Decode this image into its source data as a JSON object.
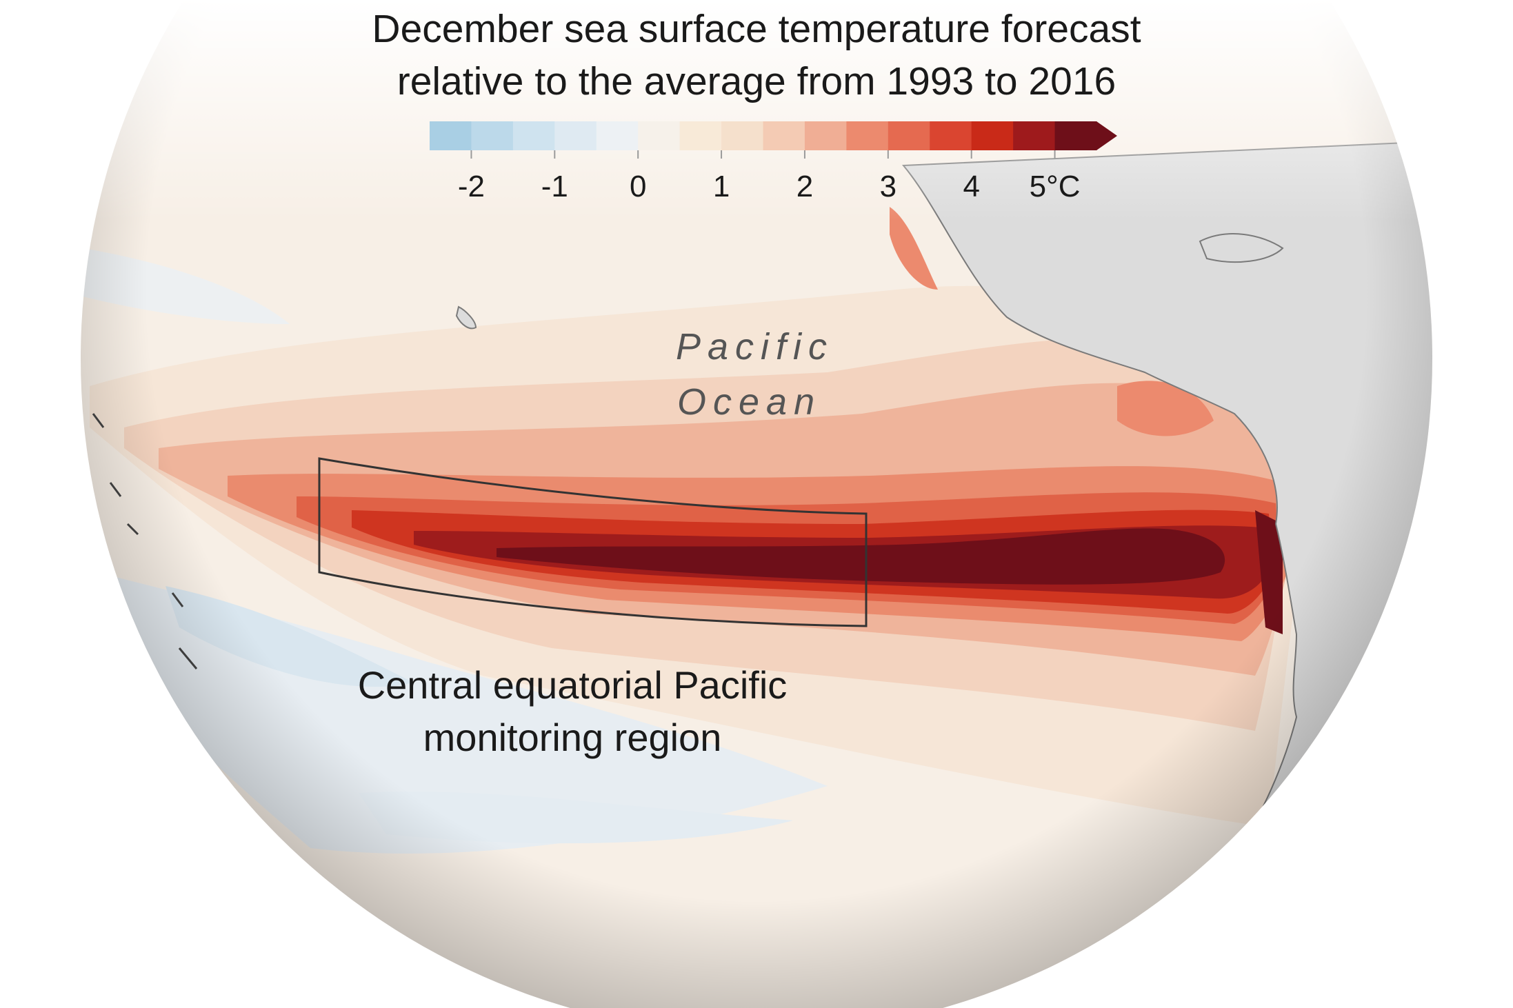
{
  "title": {
    "line1": "December sea surface temperature forecast",
    "line2": "relative to the average from 1993 to 2016"
  },
  "legend": {
    "unit": "°C",
    "ticks": [
      "-2",
      "-1",
      "0",
      "1",
      "2",
      "3",
      "4",
      "5°C"
    ],
    "tick_values": [
      -2,
      -1,
      0,
      1,
      2,
      3,
      4,
      5
    ],
    "bins": [
      {
        "from": -2.5,
        "to": -2.0,
        "color": "#a9cfe4"
      },
      {
        "from": -2.0,
        "to": -1.5,
        "color": "#bcd9ea"
      },
      {
        "from": -1.5,
        "to": -1.0,
        "color": "#cfe3ef"
      },
      {
        "from": -1.0,
        "to": -0.5,
        "color": "#dfeaf2"
      },
      {
        "from": -0.5,
        "to": 0.0,
        "color": "#edf1f4"
      },
      {
        "from": 0.0,
        "to": 0.5,
        "color": "#f6f1ea"
      },
      {
        "from": 0.5,
        "to": 1.0,
        "color": "#f8ead8"
      },
      {
        "from": 1.0,
        "to": 1.5,
        "color": "#f5e0cc"
      },
      {
        "from": 1.5,
        "to": 2.0,
        "color": "#f4cbb4"
      },
      {
        "from": 2.0,
        "to": 2.5,
        "color": "#f0ae95"
      },
      {
        "from": 2.5,
        "to": 3.0,
        "color": "#ec8a6e"
      },
      {
        "from": 3.0,
        "to": 3.5,
        "color": "#e56a50"
      },
      {
        "from": 3.5,
        "to": 4.0,
        "color": "#da4530"
      },
      {
        "from": 4.0,
        "to": 4.5,
        "color": "#c92a18"
      },
      {
        "from": 4.5,
        "to": 5.0,
        "color": "#9e1a1c"
      },
      {
        "from": 5.0,
        "to": 5.5,
        "color": "#6e0f19"
      }
    ],
    "overflow_arrow": true
  },
  "labels": {
    "ocean_line1": "Pacific",
    "ocean_line2": "Ocean",
    "region_line1": "Central equatorial Pacific",
    "region_line2": "monitoring region"
  },
  "colors": {
    "land": "#dcdcdc",
    "coastline": "#7a7a7a",
    "region_box": "#333333"
  }
}
